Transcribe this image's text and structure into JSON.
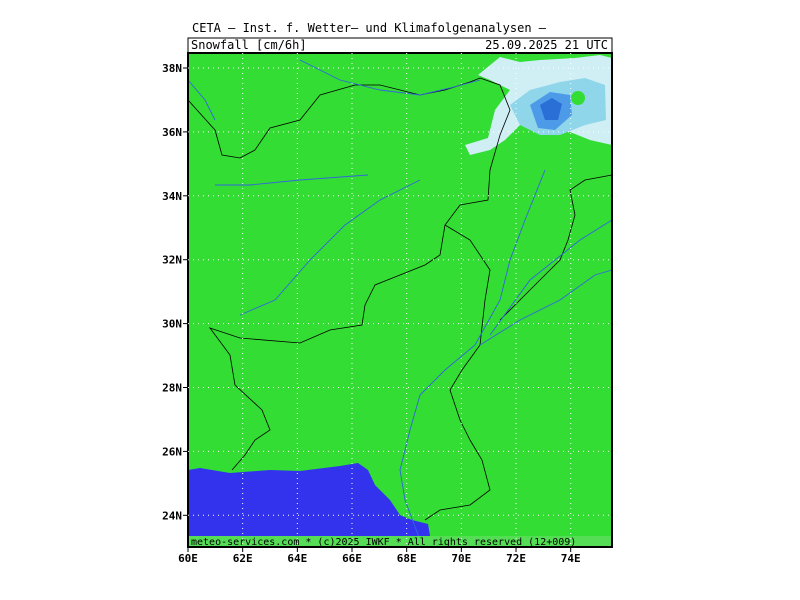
{
  "header": {
    "title": "CETA – Inst. f. Wetter– und Klimafolgenanalysen –",
    "field": "Snowfall [cm/6h]",
    "time": "25.09.2025 21 UTC"
  },
  "axes": {
    "x_labels": [
      "60E",
      "62E",
      "64E",
      "66E",
      "68E",
      "70E",
      "72E",
      "74E"
    ],
    "y_labels": [
      "38N",
      "36N",
      "34N",
      "32N",
      "30N",
      "28N",
      "26N",
      "24N"
    ]
  },
  "footer": "meteo-services.com * (c)2025 IWKF * All rights reserved (12+009)"
}
